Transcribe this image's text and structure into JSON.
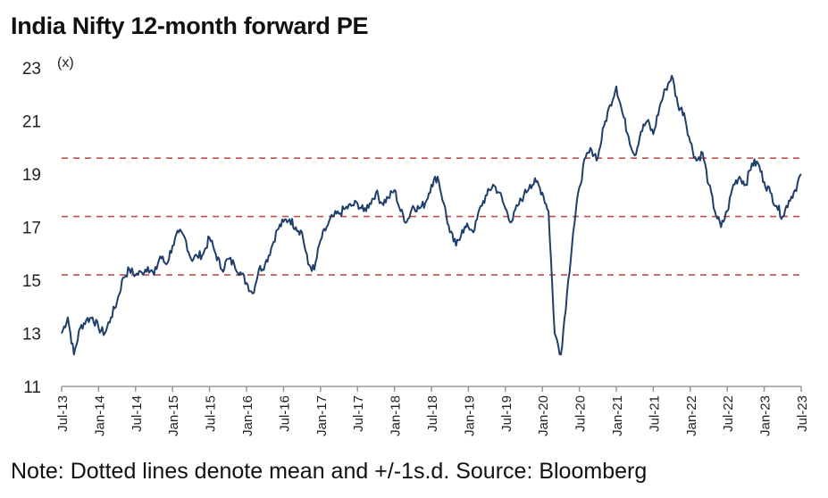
{
  "title": "India Nifty 12-month forward PE",
  "unit_label": "(x)",
  "note": "Note: Dotted lines denote mean and +/-1s.d.  Source: Bloomberg",
  "colors": {
    "series": "#1f3f6b",
    "bands": "#c0504d",
    "axis": "#999999"
  },
  "chart_data": {
    "type": "line",
    "title": "India Nifty 12-month forward PE",
    "ylabel": "(x)",
    "xlabel": "",
    "ylim": [
      11,
      23
    ],
    "yticks": [
      11,
      13,
      15,
      17,
      19,
      21,
      23
    ],
    "xlim": [
      "2013-07",
      "2023-07"
    ],
    "xticks": [
      "Jul-13",
      "Jan-14",
      "Jul-14",
      "Jan-15",
      "Jul-15",
      "Jan-16",
      "Jul-16",
      "Jan-17",
      "Jul-17",
      "Jan-18",
      "Jul-18",
      "Jan-19",
      "Jul-19",
      "Jan-20",
      "Jul-20",
      "Jan-21",
      "Jul-21",
      "Jan-22",
      "Jul-22",
      "Jan-23",
      "Jul-23"
    ],
    "grid": false,
    "reference_lines": [
      {
        "label": "mean + 1s.d.",
        "y": 19.6
      },
      {
        "label": "mean",
        "y": 17.4
      },
      {
        "label": "mean - 1s.d.",
        "y": 15.2
      }
    ],
    "series": [
      {
        "values": [
          [
            "2013-07",
            13.0
          ],
          [
            "2013-08",
            13.6
          ],
          [
            "2013-09",
            12.2
          ],
          [
            "2013-10",
            13.2
          ],
          [
            "2013-11",
            13.5
          ],
          [
            "2013-12",
            13.6
          ],
          [
            "2014-01",
            13.2
          ],
          [
            "2014-02",
            13.0
          ],
          [
            "2014-03",
            13.6
          ],
          [
            "2014-04",
            14.2
          ],
          [
            "2014-05",
            15.1
          ],
          [
            "2014-06",
            15.4
          ],
          [
            "2014-07",
            15.2
          ],
          [
            "2014-08",
            15.3
          ],
          [
            "2014-09",
            15.5
          ],
          [
            "2014-10",
            15.2
          ],
          [
            "2014-11",
            15.9
          ],
          [
            "2014-12",
            15.6
          ],
          [
            "2015-01",
            16.3
          ],
          [
            "2015-02",
            16.8
          ],
          [
            "2015-03",
            16.6
          ],
          [
            "2015-04",
            15.8
          ],
          [
            "2015-05",
            15.9
          ],
          [
            "2015-06",
            16.0
          ],
          [
            "2015-07",
            16.6
          ],
          [
            "2015-08",
            16.0
          ],
          [
            "2015-09",
            15.4
          ],
          [
            "2015-10",
            15.8
          ],
          [
            "2015-11",
            15.6
          ],
          [
            "2015-12",
            15.3
          ],
          [
            "2016-01",
            14.9
          ],
          [
            "2016-02",
            14.5
          ],
          [
            "2016-03",
            15.4
          ],
          [
            "2016-04",
            15.6
          ],
          [
            "2016-05",
            16.2
          ],
          [
            "2016-06",
            16.9
          ],
          [
            "2016-07",
            17.2
          ],
          [
            "2016-08",
            17.3
          ],
          [
            "2016-09",
            17.0
          ],
          [
            "2016-10",
            16.8
          ],
          [
            "2016-11",
            15.6
          ],
          [
            "2016-12",
            15.4
          ],
          [
            "2017-01",
            16.5
          ],
          [
            "2017-02",
            17.0
          ],
          [
            "2017-03",
            17.4
          ],
          [
            "2017-04",
            17.5
          ],
          [
            "2017-05",
            17.7
          ],
          [
            "2017-06",
            17.8
          ],
          [
            "2017-07",
            17.9
          ],
          [
            "2017-08",
            17.6
          ],
          [
            "2017-09",
            17.9
          ],
          [
            "2017-10",
            18.3
          ],
          [
            "2017-11",
            17.9
          ],
          [
            "2017-12",
            18.1
          ],
          [
            "2018-01",
            18.4
          ],
          [
            "2018-02",
            17.6
          ],
          [
            "2018-03",
            17.2
          ],
          [
            "2018-04",
            17.8
          ],
          [
            "2018-05",
            17.7
          ],
          [
            "2018-06",
            17.9
          ],
          [
            "2018-07",
            18.6
          ],
          [
            "2018-08",
            18.9
          ],
          [
            "2018-09",
            17.9
          ],
          [
            "2018-10",
            16.8
          ],
          [
            "2018-11",
            16.3
          ],
          [
            "2018-12",
            16.9
          ],
          [
            "2019-01",
            17.0
          ],
          [
            "2019-02",
            16.9
          ],
          [
            "2019-03",
            17.8
          ],
          [
            "2019-04",
            18.2
          ],
          [
            "2019-05",
            18.6
          ],
          [
            "2019-06",
            18.3
          ],
          [
            "2019-07",
            17.7
          ],
          [
            "2019-08",
            17.2
          ],
          [
            "2019-09",
            17.8
          ],
          [
            "2019-10",
            18.2
          ],
          [
            "2019-11",
            18.6
          ],
          [
            "2019-12",
            18.7
          ],
          [
            "2020-01",
            18.3
          ],
          [
            "2020-02",
            17.6
          ],
          [
            "2020-03",
            13.0
          ],
          [
            "2020-04",
            12.2
          ],
          [
            "2020-05",
            14.5
          ],
          [
            "2020-06",
            16.8
          ],
          [
            "2020-07",
            18.5
          ],
          [
            "2020-08",
            19.6
          ],
          [
            "2020-09",
            19.9
          ],
          [
            "2020-10",
            19.6
          ],
          [
            "2020-11",
            20.8
          ],
          [
            "2020-12",
            21.6
          ],
          [
            "2021-01",
            22.3
          ],
          [
            "2021-02",
            21.3
          ],
          [
            "2021-03",
            20.4
          ],
          [
            "2021-04",
            19.7
          ],
          [
            "2021-05",
            20.6
          ],
          [
            "2021-06",
            21.0
          ],
          [
            "2021-07",
            20.5
          ],
          [
            "2021-08",
            21.5
          ],
          [
            "2021-09",
            22.2
          ],
          [
            "2021-10",
            22.7
          ],
          [
            "2021-11",
            21.6
          ],
          [
            "2021-12",
            21.3
          ],
          [
            "2022-01",
            20.2
          ],
          [
            "2022-02",
            19.5
          ],
          [
            "2022-03",
            19.8
          ],
          [
            "2022-04",
            18.6
          ],
          [
            "2022-05",
            17.6
          ],
          [
            "2022-06",
            17.0
          ],
          [
            "2022-07",
            17.6
          ],
          [
            "2022-08",
            18.6
          ],
          [
            "2022-09",
            18.9
          ],
          [
            "2022-10",
            18.6
          ],
          [
            "2022-11",
            19.4
          ],
          [
            "2022-12",
            19.4
          ],
          [
            "2023-01",
            18.7
          ],
          [
            "2023-02",
            18.3
          ],
          [
            "2023-03",
            17.8
          ],
          [
            "2023-04",
            17.4
          ],
          [
            "2023-05",
            18.0
          ],
          [
            "2023-06",
            18.4
          ],
          [
            "2023-07",
            19.0
          ]
        ]
      }
    ]
  }
}
